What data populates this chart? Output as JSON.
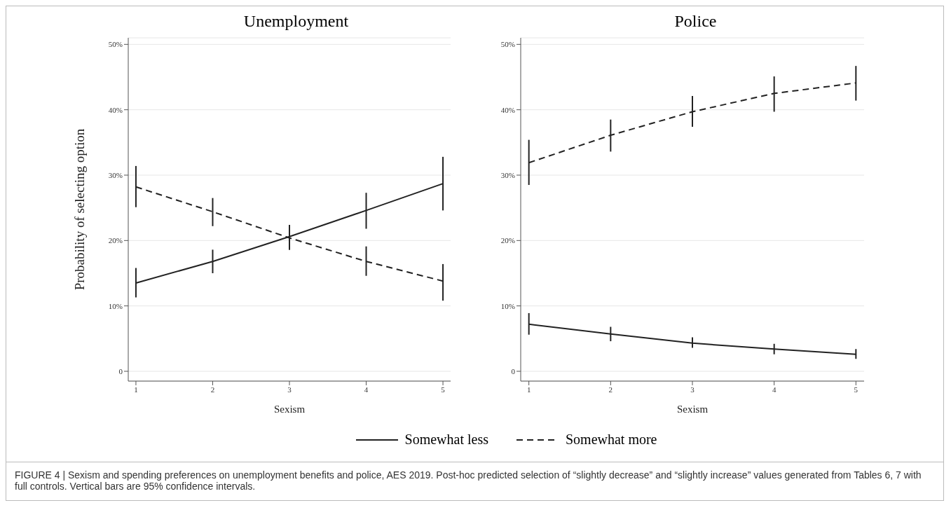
{
  "chart_data": [
    {
      "type": "line",
      "title": "Unemployment",
      "xlabel": "Sexism",
      "ylabel": "Probability of selecting option",
      "x": [
        1,
        2,
        3,
        4,
        5
      ],
      "xlim": [
        0.9,
        5.1
      ],
      "xticks": [
        1,
        2,
        3,
        4,
        5
      ],
      "ylim": [
        -1.5,
        51
      ],
      "yticks": [
        0,
        {
          "value": 10,
          "label": "10%"
        },
        {
          "value": 20,
          "label": "20%"
        },
        {
          "value": 30,
          "label": "30%"
        },
        {
          "value": 40,
          "label": "40%"
        },
        {
          "value": 50,
          "label": "50%"
        }
      ],
      "grid": "y",
      "legend": "bottom",
      "marker": "none",
      "series": [
        {
          "name": "Somewhat less",
          "color": "#222222",
          "line_style": "solid",
          "values": [
            13.5,
            16.8,
            20.6,
            24.6,
            28.7
          ],
          "errors": [
            [
              11.3,
              15.8
            ],
            [
              15.0,
              18.6
            ],
            [
              18.6,
              22.4
            ],
            [
              21.8,
              27.3
            ],
            [
              24.6,
              32.8
            ]
          ]
        },
        {
          "name": "Somewhat more",
          "color": "#222222",
          "line_style": "dashed",
          "values": [
            28.2,
            24.4,
            20.4,
            16.8,
            13.8
          ],
          "errors": [
            [
              25.1,
              31.4
            ],
            [
              22.2,
              26.5
            ],
            [
              18.6,
              22.4
            ],
            [
              14.6,
              19.1
            ],
            [
              10.8,
              16.4
            ]
          ]
        }
      ],
      "annotations": [
        "FIGURE 4 | Sexism and spending preferences on unemployment benefits and police, AES 2019. Post-hoc predicted selection of “slightly decrease” and “slightly increase” values generated from Tables 6, 7 with full controls. Vertical bars are 95% confidence intervals."
      ]
    },
    {
      "type": "line",
      "title": "Police",
      "xlabel": "Sexism",
      "x": [
        1,
        2,
        3,
        4,
        5
      ],
      "xlim": [
        0.9,
        5.1
      ],
      "xticks": [
        1,
        2,
        3,
        4,
        5
      ],
      "ylim": [
        -1.5,
        51
      ],
      "yticks": [
        0,
        {
          "value": 10,
          "label": "10%"
        },
        {
          "value": 20,
          "label": "20%"
        },
        {
          "value": 30,
          "label": "30%"
        },
        {
          "value": 40,
          "label": "40%"
        },
        {
          "value": 50,
          "label": "50%"
        }
      ],
      "grid": "y",
      "marker": "none",
      "series": [
        {
          "color": "#222222",
          "line_style": "solid",
          "values": [
            7.2,
            5.7,
            4.3,
            3.4,
            2.6
          ],
          "errors": [
            [
              5.6,
              8.9
            ],
            [
              4.6,
              6.8
            ],
            [
              3.6,
              5.2
            ],
            [
              2.6,
              4.2
            ],
            [
              1.9,
              3.4
            ]
          ]
        },
        {
          "color": "#222222",
          "line_style": "dashed",
          "values": [
            31.9,
            36.1,
            39.7,
            42.5,
            44.1
          ],
          "errors": [
            [
              28.5,
              35.4
            ],
            [
              33.6,
              38.5
            ],
            [
              37.4,
              42.1
            ],
            [
              39.7,
              45.1
            ],
            [
              41.4,
              46.7
            ]
          ]
        }
      ]
    }
  ]
}
